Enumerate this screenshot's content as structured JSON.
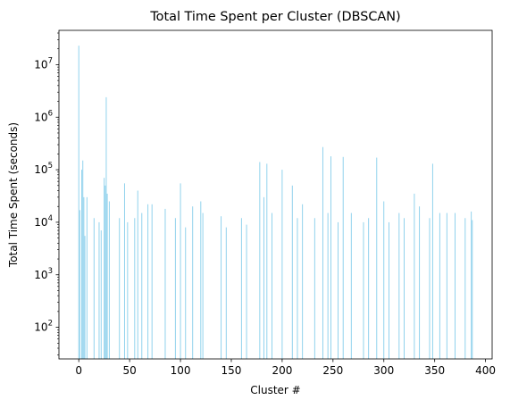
{
  "chart_data": {
    "type": "bar",
    "title": "Total Time Spent per Cluster (DBSCAN)",
    "xlabel": "Cluster #",
    "ylabel": "Total Time Spent (seconds)",
    "yscale": "log",
    "xlim": [
      -19.5,
      406.5
    ],
    "ylim": [
      25,
      45000000
    ],
    "xticks": [
      0,
      50,
      100,
      150,
      200,
      250,
      300,
      350,
      400
    ],
    "xtick_labels": [
      "0",
      "50",
      "100",
      "150",
      "200",
      "250",
      "300",
      "350",
      "400"
    ],
    "yticks": [
      100,
      1000,
      10000,
      100000,
      1000000,
      10000000
    ],
    "ytick_labels": [
      "10^2",
      "10^3",
      "10^4",
      "10^5",
      "10^6",
      "10^7"
    ],
    "bar_color": "#87CEEB",
    "grid": false,
    "legend": "none",
    "x_count": 388,
    "highlights": [
      [
        0,
        23000000
      ],
      [
        1,
        17000
      ],
      [
        3,
        100000
      ],
      [
        4,
        150000
      ],
      [
        5,
        30000
      ],
      [
        6,
        5500
      ],
      [
        8,
        30000
      ],
      [
        15,
        12000
      ],
      [
        20,
        10000
      ],
      [
        22,
        7000
      ],
      [
        25,
        70000
      ],
      [
        26,
        50000
      ],
      [
        27,
        2400000
      ],
      [
        28,
        35000
      ],
      [
        30,
        25000
      ],
      [
        40,
        12000
      ],
      [
        45,
        55000
      ],
      [
        48,
        10000
      ],
      [
        55,
        12000
      ],
      [
        58,
        40000
      ],
      [
        62,
        15000
      ],
      [
        68,
        22000
      ],
      [
        72,
        22000
      ],
      [
        85,
        18000
      ],
      [
        95,
        12000
      ],
      [
        100,
        55000
      ],
      [
        105,
        8000
      ],
      [
        112,
        20000
      ],
      [
        120,
        25000
      ],
      [
        122,
        15000
      ],
      [
        140,
        13000
      ],
      [
        145,
        8000
      ],
      [
        160,
        12000
      ],
      [
        165,
        9000
      ],
      [
        178,
        140000
      ],
      [
        182,
        30000
      ],
      [
        185,
        130000
      ],
      [
        190,
        15000
      ],
      [
        200,
        100000
      ],
      [
        210,
        50000
      ],
      [
        215,
        12000
      ],
      [
        220,
        22000
      ],
      [
        232,
        12000
      ],
      [
        240,
        270000
      ],
      [
        245,
        15000
      ],
      [
        248,
        180000
      ],
      [
        255,
        10000
      ],
      [
        260,
        175000
      ],
      [
        268,
        15000
      ],
      [
        280,
        10000
      ],
      [
        285,
        12000
      ],
      [
        293,
        170000
      ],
      [
        300,
        25000
      ],
      [
        305,
        10000
      ],
      [
        315,
        15000
      ],
      [
        320,
        12000
      ],
      [
        330,
        35000
      ],
      [
        335,
        20000
      ],
      [
        345,
        12000
      ],
      [
        348,
        130000
      ],
      [
        355,
        15000
      ],
      [
        362,
        15000
      ],
      [
        370,
        15000
      ],
      [
        380,
        12000
      ],
      [
        386,
        16000
      ],
      [
        387,
        11000
      ]
    ]
  }
}
